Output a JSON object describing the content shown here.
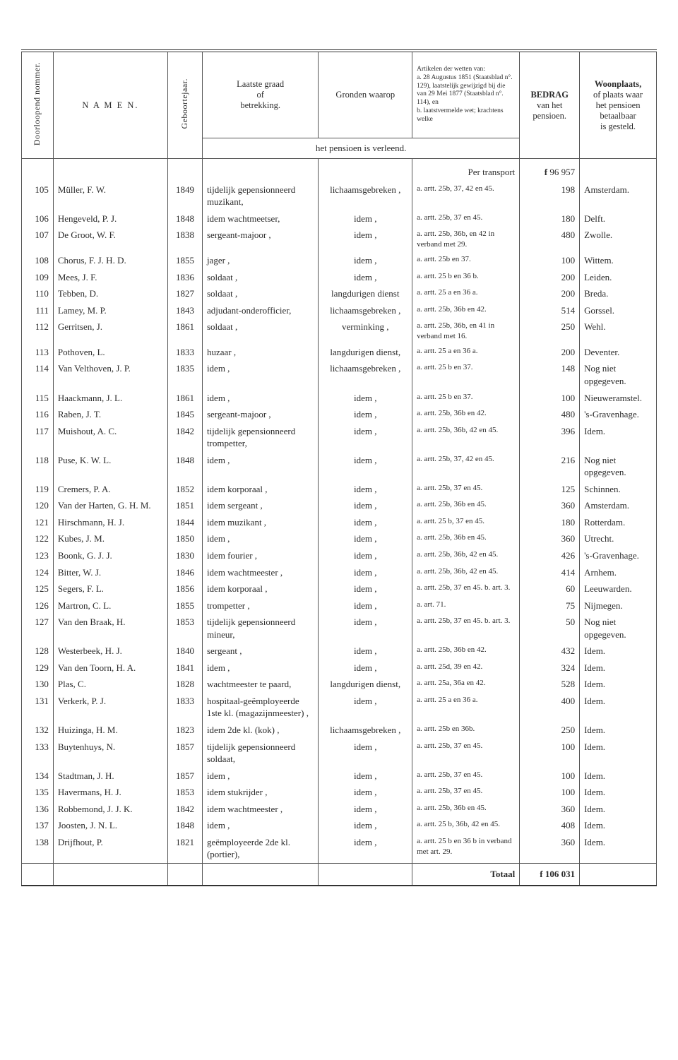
{
  "header": {
    "col_num": "Doorloopend nommer.",
    "col_name": "N A M E N.",
    "col_year": "Geboortejaar.",
    "col_rank": "Laatste graad\nof\nbetrekking.",
    "col_ground": "Gronden waarop",
    "col_law": "Artikelen der wetten van:\na. 28 Augustus 1851 (Staatsblad n°. 129), laatstelijk gewijzigd bij die van 29 Mei 1877 (Staatsblad n°. 114), en\nb. laatstvermelde wet; krachtens welke",
    "col_span": "het pensioen is verleend.",
    "col_amount_1": "BEDRAG",
    "col_amount_2": "van het",
    "col_amount_3": "pensioen.",
    "col_place_1": "Woonplaats,",
    "col_place_2": "of plaats waar",
    "col_place_3": "het pensioen",
    "col_place_4": "betaalbaar",
    "col_place_5": "is gesteld.",
    "per_transport": "Per transport",
    "transport_amount": "96 957",
    "totaal_label": "Totaal",
    "totaal_amount": "106 031",
    "currency": "f"
  },
  "rows": [
    {
      "n": "105",
      "name": "Müller, F. W.",
      "year": "1849",
      "rank": "tijdelijk gepensionneerd muzikant,",
      "ground": "lichaamsgebreken ,",
      "law": "a. artt. 25b, 37, 42 en 45.",
      "amount": "198",
      "place": "Amsterdam."
    },
    {
      "n": "106",
      "name": "Hengeveld, P. J.",
      "year": "1848",
      "rank": "idem wachtmeetser,",
      "ground": "idem ,",
      "law": "a. artt. 25b, 37 en 45.",
      "amount": "180",
      "place": "Delft."
    },
    {
      "n": "107",
      "name": "De Groot, W. F.",
      "year": "1838",
      "rank": "sergeant-majoor ,",
      "ground": "idem ,",
      "law": "a. artt. 25b, 36b, en 42 in verband met 29.",
      "amount": "480",
      "place": "Zwolle."
    },
    {
      "n": "108",
      "name": "Chorus, F. J. H. D.",
      "year": "1855",
      "rank": "jager ,",
      "ground": "idem ,",
      "law": "a. artt. 25b en 37.",
      "amount": "100",
      "place": "Wittem."
    },
    {
      "n": "109",
      "name": "Mees, J. F.",
      "year": "1836",
      "rank": "soldaat ,",
      "ground": "idem ,",
      "law": "a. artt. 25 b en 36 b.",
      "amount": "200",
      "place": "Leiden."
    },
    {
      "n": "110",
      "name": "Tebben, D.",
      "year": "1827",
      "rank": "soldaat ,",
      "ground": "langdurigen dienst",
      "law": "a. artt. 25 a en 36 a.",
      "amount": "200",
      "place": "Breda."
    },
    {
      "n": "111",
      "name": "Lamey, M. P.",
      "year": "1843",
      "rank": "adjudant-onderofficier,",
      "ground": "lichaamsgebreken ,",
      "law": "a. artt. 25b, 36b en 42.",
      "amount": "514",
      "place": "Gorssel."
    },
    {
      "n": "112",
      "name": "Gerritsen, J.",
      "year": "1861",
      "rank": "soldaat ,",
      "ground": "verminking ,",
      "law": "a. artt. 25b, 36b, en 41 in verband met 16.",
      "amount": "250",
      "place": "Wehl."
    },
    {
      "n": "113",
      "name": "Pothoven, L.",
      "year": "1833",
      "rank": "huzaar ,",
      "ground": "langdurigen dienst,",
      "law": "a. artt. 25 a en 36 a.",
      "amount": "200",
      "place": "Deventer."
    },
    {
      "n": "114",
      "name": "Van Velthoven, J. P.",
      "year": "1835",
      "rank": "idem ,",
      "ground": "lichaamsgebreken ,",
      "law": "a. artt. 25 b en 37.",
      "amount": "148",
      "place": "Nog niet opgegeven."
    },
    {
      "n": "115",
      "name": "Haackmann, J. L.",
      "year": "1861",
      "rank": "idem ,",
      "ground": "idem ,",
      "law": "a. artt. 25 b en 37.",
      "amount": "100",
      "place": "Nieuweramstel."
    },
    {
      "n": "116",
      "name": "Raben, J. T.",
      "year": "1845",
      "rank": "sergeant-majoor ,",
      "ground": "idem ,",
      "law": "a. artt. 25b, 36b en 42.",
      "amount": "480",
      "place": "'s-Gravenhage."
    },
    {
      "n": "117",
      "name": "Muishout, A. C.",
      "year": "1842",
      "rank": "tijdelijk gepensionneerd trompetter,",
      "ground": "idem ,",
      "law": "a. artt. 25b, 36b, 42 en 45.",
      "amount": "396",
      "place": "Idem."
    },
    {
      "n": "118",
      "name": "Puse, K. W. L.",
      "year": "1848",
      "rank": "idem ,",
      "ground": "idem ,",
      "law": "a. artt. 25b, 37, 42 en 45.",
      "amount": "216",
      "place": "Nog niet opgegeven."
    },
    {
      "n": "119",
      "name": "Cremers, P. A.",
      "year": "1852",
      "rank": "idem korporaal ,",
      "ground": "idem ,",
      "law": "a. artt. 25b, 37 en 45.",
      "amount": "125",
      "place": "Schinnen."
    },
    {
      "n": "120",
      "name": "Van der Harten, G. H. M.",
      "year": "1851",
      "rank": "idem sergeant ,",
      "ground": "idem ,",
      "law": "a. artt. 25b, 36b en 45.",
      "amount": "360",
      "place": "Amsterdam."
    },
    {
      "n": "121",
      "name": "Hirschmann, H. J.",
      "year": "1844",
      "rank": "idem muzikant ,",
      "ground": "idem ,",
      "law": "a. artt. 25 b, 37 en 45.",
      "amount": "180",
      "place": "Rotterdam."
    },
    {
      "n": "122",
      "name": "Kubes, J. M.",
      "year": "1850",
      "rank": "idem ,",
      "ground": "idem ,",
      "law": "a. artt. 25b, 36b en 45.",
      "amount": "360",
      "place": "Utrecht."
    },
    {
      "n": "123",
      "name": "Boonk, G. J. J.",
      "year": "1830",
      "rank": "idem fourier ,",
      "ground": "idem ,",
      "law": "a. artt. 25b, 36b, 42 en 45.",
      "amount": "426",
      "place": "'s-Gravenhage."
    },
    {
      "n": "124",
      "name": "Bitter, W. J.",
      "year": "1846",
      "rank": "idem wachtmeester ,",
      "ground": "idem ,",
      "law": "a. artt. 25b, 36b, 42 en 45.",
      "amount": "414",
      "place": "Arnhem."
    },
    {
      "n": "125",
      "name": "Segers, F. L.",
      "year": "1856",
      "rank": "idem korporaal ,",
      "ground": "idem ,",
      "law": "a. artt. 25b, 37 en 45. b. art. 3.",
      "amount": "60",
      "place": "Leeuwarden."
    },
    {
      "n": "126",
      "name": "Martron, C. L.",
      "year": "1855",
      "rank": "trompetter ,",
      "ground": "idem ,",
      "law": "a. art. 71.",
      "amount": "75",
      "place": "Nijmegen."
    },
    {
      "n": "127",
      "name": "Van den Braak, H.",
      "year": "1853",
      "rank": "tijdelijk gepensionneerd mineur,",
      "ground": "idem ,",
      "law": "a. artt. 25b, 37 en 45. b. art. 3.",
      "amount": "50",
      "place": "Nog niet opgegeven."
    },
    {
      "n": "128",
      "name": "Westerbeek, H. J.",
      "year": "1840",
      "rank": "sergeant ,",
      "ground": "idem ,",
      "law": "a. artt. 25b, 36b en 42.",
      "amount": "432",
      "place": "Idem."
    },
    {
      "n": "129",
      "name": "Van den Toorn, H. A.",
      "year": "1841",
      "rank": "idem ,",
      "ground": "idem ,",
      "law": "a. artt. 25d, 39 en 42.",
      "amount": "324",
      "place": "Idem."
    },
    {
      "n": "130",
      "name": "Plas, C.",
      "year": "1828",
      "rank": "wachtmeester te paard,",
      "ground": "langdurigen dienst,",
      "law": "a. artt. 25a, 36a en 42.",
      "amount": "528",
      "place": "Idem."
    },
    {
      "n": "131",
      "name": "Verkerk, P. J.",
      "year": "1833",
      "rank": "hospitaal-geëmployeerde 1ste kl. (magazijnmeester) ,",
      "ground": "idem ,",
      "law": "a. artt. 25 a en 36 a.",
      "amount": "400",
      "place": "Idem."
    },
    {
      "n": "132",
      "name": "Huizinga, H. M.",
      "year": "1823",
      "rank": "idem 2de kl. (kok) ,",
      "ground": "lichaamsgebreken ,",
      "law": "a. artt. 25b en 36b.",
      "amount": "250",
      "place": "Idem."
    },
    {
      "n": "133",
      "name": "Buytenhuys, N.",
      "year": "1857",
      "rank": "tijdelijk gepensionneerd soldaat,",
      "ground": "idem ,",
      "law": "a. artt. 25b, 37 en 45.",
      "amount": "100",
      "place": "Idem."
    },
    {
      "n": "134",
      "name": "Stadtman, J. H.",
      "year": "1857",
      "rank": "idem ,",
      "ground": "idem ,",
      "law": "a. artt. 25b, 37 en 45.",
      "amount": "100",
      "place": "Idem."
    },
    {
      "n": "135",
      "name": "Havermans, H. J.",
      "year": "1853",
      "rank": "idem stukrijder ,",
      "ground": "idem ,",
      "law": "a. artt. 25b, 37 en 45.",
      "amount": "100",
      "place": "Idem."
    },
    {
      "n": "136",
      "name": "Robbemond, J. J. K.",
      "year": "1842",
      "rank": "idem wachtmeester ,",
      "ground": "idem ,",
      "law": "a. artt. 25b, 36b en 45.",
      "amount": "360",
      "place": "Idem."
    },
    {
      "n": "137",
      "name": "Joosten, J. N. L.",
      "year": "1848",
      "rank": "idem ,",
      "ground": "idem ,",
      "law": "a. artt. 25 b, 36b, 42 en 45.",
      "amount": "408",
      "place": "Idem."
    },
    {
      "n": "138",
      "name": "Drijfhout, P.",
      "year": "1821",
      "rank": "geëmployeerde 2de kl. (portier),",
      "ground": "idem ,",
      "law": "a. artt. 25 b en 36 b in verband met art. 29.",
      "amount": "360",
      "place": "Idem."
    }
  ]
}
